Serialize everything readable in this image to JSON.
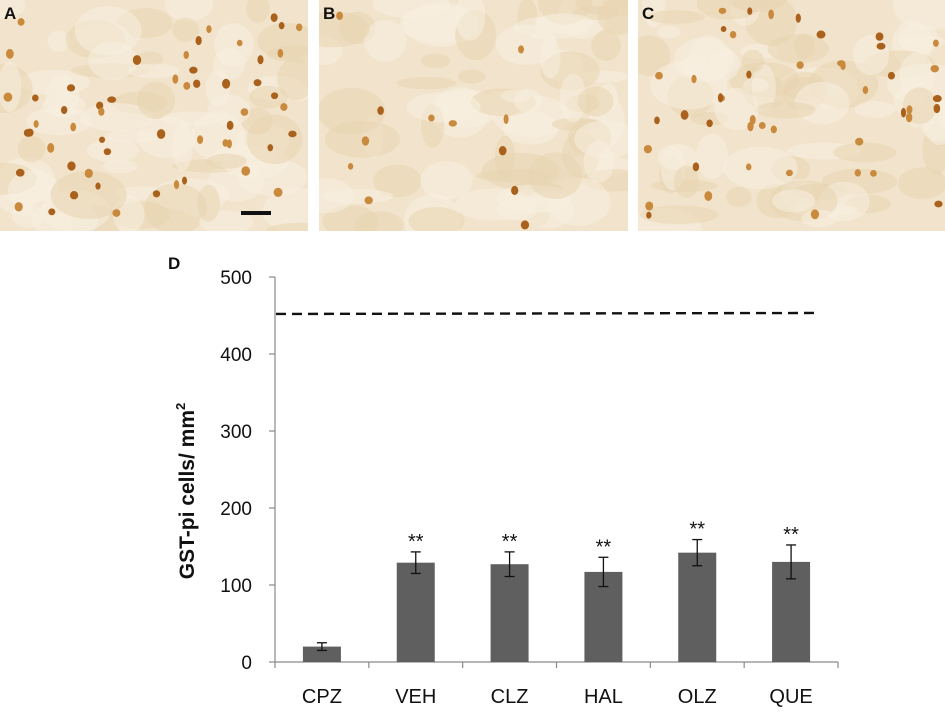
{
  "panels": [
    {
      "letter": "A",
      "density": "high"
    },
    {
      "letter": "B",
      "density": "low"
    },
    {
      "letter": "C",
      "density": "medium"
    }
  ],
  "chart_data": {
    "type": "bar",
    "panel_letter": "D",
    "ylabel": "GST-pi cells/ mm",
    "ylabel_superscript": "2",
    "categories": [
      "CPZ",
      "VEH",
      "CLZ",
      "HAL",
      "OLZ",
      "QUE"
    ],
    "values": [
      20,
      129,
      127,
      117,
      142,
      130
    ],
    "errors": [
      5,
      14,
      16,
      19,
      17,
      22
    ],
    "significance": [
      "",
      "**",
      "**",
      "**",
      "**",
      "**"
    ],
    "reference_line": 452,
    "ylim": [
      0,
      500
    ],
    "yticks": [
      0,
      100,
      200,
      300,
      400,
      500
    ],
    "bar_color": "#5f5f5f",
    "grid": false
  }
}
